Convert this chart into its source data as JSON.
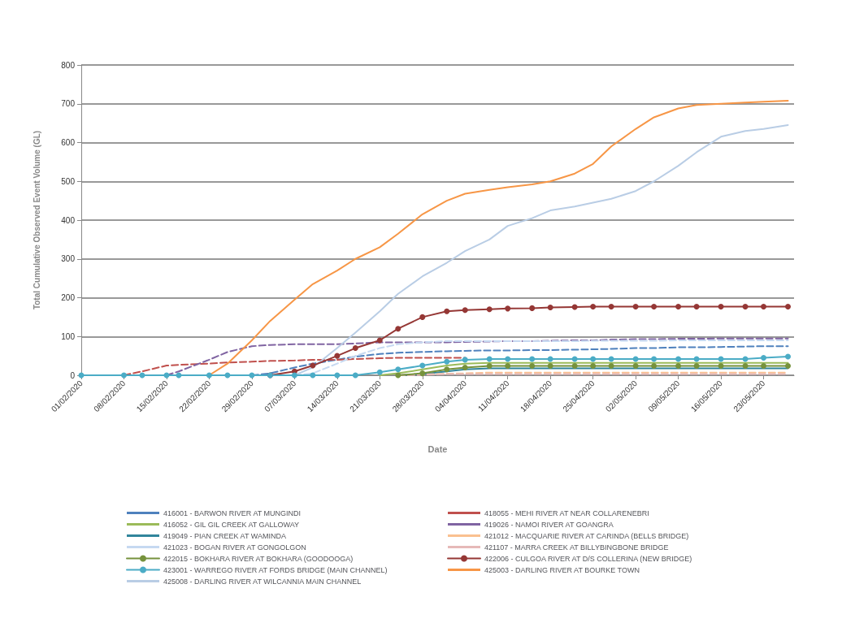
{
  "chart_data": {
    "type": "line",
    "xlabel": "Date",
    "ylabel": "Total Cumulative Observed Event Volume (GL)",
    "x": [
      "2020-02-01",
      "2020-02-08",
      "2020-02-11",
      "2020-02-15",
      "2020-02-17",
      "2020-02-22",
      "2020-02-25",
      "2020-02-29",
      "2020-03-03",
      "2020-03-07",
      "2020-03-10",
      "2020-03-14",
      "2020-03-17",
      "2020-03-21",
      "2020-03-24",
      "2020-03-28",
      "2020-04-01",
      "2020-04-04",
      "2020-04-08",
      "2020-04-11",
      "2020-04-15",
      "2020-04-18",
      "2020-04-22",
      "2020-04-25",
      "2020-04-28",
      "2020-05-02",
      "2020-05-05",
      "2020-05-09",
      "2020-05-12",
      "2020-05-16",
      "2020-05-20",
      "2020-05-23",
      "2020-05-27"
    ],
    "xlim": [
      "2020-02-01",
      "2020-05-28"
    ],
    "xticks": [
      {
        "value": "2020-02-01",
        "label": "01/02/2020"
      },
      {
        "value": "2020-02-08",
        "label": "08/02/2020"
      },
      {
        "value": "2020-02-15",
        "label": "15/02/2020"
      },
      {
        "value": "2020-02-22",
        "label": "22/02/2020"
      },
      {
        "value": "2020-02-29",
        "label": "29/02/2020"
      },
      {
        "value": "2020-03-07",
        "label": "07/03/2020"
      },
      {
        "value": "2020-03-14",
        "label": "14/03/2020"
      },
      {
        "value": "2020-03-21",
        "label": "21/03/2020"
      },
      {
        "value": "2020-03-28",
        "label": "28/03/2020"
      },
      {
        "value": "2020-04-04",
        "label": "04/04/2020"
      },
      {
        "value": "2020-04-11",
        "label": "11/04/2020"
      },
      {
        "value": "2020-04-18",
        "label": "18/04/2020"
      },
      {
        "value": "2020-04-25",
        "label": "25/04/2020"
      },
      {
        "value": "2020-05-02",
        "label": "02/05/2020"
      },
      {
        "value": "2020-05-09",
        "label": "09/05/2020"
      },
      {
        "value": "2020-05-16",
        "label": "16/05/2020"
      },
      {
        "value": "2020-05-23",
        "label": "23/05/2020"
      }
    ],
    "ylim": [
      0,
      800
    ],
    "yticks": [
      0,
      100,
      200,
      300,
      400,
      500,
      600,
      700,
      800
    ],
    "grid": "y",
    "legend": "bottom",
    "marker": "none",
    "series": [
      {
        "name": "416001 - BARWON RIVER AT MUNGINDI",
        "color": "#4f81bd",
        "line_style": "dashed",
        "values": [
          null,
          null,
          null,
          null,
          null,
          null,
          null,
          0,
          5,
          20,
          30,
          40,
          48,
          55,
          58,
          60,
          62,
          63,
          64,
          64,
          65,
          65,
          66,
          67,
          68,
          70,
          70,
          72,
          72,
          73,
          74,
          75,
          75
        ]
      },
      {
        "name": "418055 - MEHI RIVER AT NEAR COLLARENEBRI",
        "color": "#c0504d",
        "line_style": "dashed",
        "values": [
          null,
          0,
          10,
          25,
          27,
          30,
          33,
          35,
          37,
          38,
          40,
          40,
          42,
          44,
          45,
          45,
          45,
          45,
          null,
          null,
          null,
          null,
          null,
          null,
          null,
          null,
          null,
          null,
          null,
          null,
          null,
          null,
          null
        ]
      },
      {
        "name": "416052 - GIL GIL CREEK AT GALLOWAY",
        "color": "#9bbb59",
        "line_style": "solid",
        "values": [
          null,
          null,
          null,
          null,
          null,
          null,
          null,
          null,
          null,
          null,
          null,
          null,
          null,
          0,
          5,
          15,
          25,
          30,
          32,
          32,
          32,
          32,
          32,
          32,
          32,
          32,
          32,
          32,
          32,
          32,
          32,
          32,
          32
        ]
      },
      {
        "name": "419026 - NAMOI RIVER AT GOANGRA",
        "color": "#8064a2",
        "line_style": "dashed",
        "values": [
          null,
          null,
          null,
          0,
          10,
          40,
          60,
          75,
          78,
          80,
          80,
          80,
          82,
          85,
          85,
          85,
          85,
          86,
          87,
          88,
          88,
          89,
          90,
          90,
          92,
          93,
          93,
          94,
          94,
          95,
          95,
          95,
          95
        ]
      },
      {
        "name": "419049 - PIAN CREEK AT WAMINDA",
        "color": "#31859c",
        "line_style": "solid",
        "values": [
          null,
          null,
          null,
          null,
          null,
          null,
          null,
          null,
          null,
          null,
          null,
          null,
          null,
          null,
          0,
          3,
          10,
          15,
          18,
          18,
          18,
          18,
          18,
          18,
          18,
          18,
          18,
          18,
          18,
          18,
          18,
          18,
          18
        ]
      },
      {
        "name": "421012 - MACQUARIE RIVER AT CARINDA (BELLS BRIDGE)",
        "color": "#fac090",
        "line_style": "dashed",
        "values": [
          null,
          null,
          null,
          null,
          null,
          null,
          null,
          null,
          null,
          null,
          null,
          null,
          null,
          null,
          0,
          2,
          4,
          5,
          7,
          7,
          7,
          7,
          7,
          7,
          7,
          7,
          7,
          7,
          7,
          7,
          7,
          7,
          7
        ]
      },
      {
        "name": "421023 - BOGAN RIVER AT GONGOLGON",
        "color": "#c6d9f1",
        "line_style": "dashed",
        "values": [
          null,
          null,
          null,
          null,
          null,
          null,
          null,
          null,
          null,
          0,
          5,
          30,
          50,
          70,
          80,
          85,
          88,
          88,
          88,
          88,
          88,
          88,
          88,
          89,
          89,
          89,
          89,
          90,
          90,
          90,
          90,
          90,
          90
        ]
      },
      {
        "name": "421107 - MARRA CREEK AT BILLYBINGBONE BRIDGE",
        "color": "#e6b9b8",
        "line_style": "dashed",
        "values": [
          null,
          null,
          null,
          null,
          null,
          null,
          null,
          null,
          null,
          null,
          null,
          null,
          null,
          null,
          0,
          1,
          3,
          3,
          3,
          3,
          3,
          3,
          3,
          3,
          3,
          3,
          3,
          3,
          3,
          3,
          3,
          3,
          3
        ]
      },
      {
        "name": "422015 - BOKHARA RIVER AT BOKHARA (GOODOOGA)",
        "color": "#76923c",
        "line_style": "solid",
        "marker": "circle",
        "values": [
          null,
          null,
          null,
          null,
          null,
          null,
          null,
          null,
          null,
          null,
          null,
          null,
          null,
          null,
          0,
          5,
          15,
          20,
          24,
          24,
          24,
          24,
          24,
          24,
          24,
          24,
          24,
          24,
          24,
          24,
          24,
          24,
          24
        ]
      },
      {
        "name": "422006 - CULGOA RIVER AT D/S COLLERINA (NEW BRIDGE)",
        "color": "#953735",
        "line_style": "solid",
        "marker": "circle",
        "values": [
          null,
          null,
          null,
          null,
          null,
          null,
          null,
          null,
          0,
          10,
          25,
          50,
          70,
          90,
          120,
          150,
          165,
          168,
          170,
          172,
          173,
          175,
          176,
          177,
          177,
          177,
          177,
          177,
          177,
          177,
          177,
          177,
          177
        ]
      },
      {
        "name": "423001 - WARREGO RIVER AT FORDS BRIDGE (MAIN CHANNEL)",
        "color": "#4bacc6",
        "line_style": "solid",
        "marker": "circle",
        "values": [
          0,
          0,
          0,
          0,
          0,
          0,
          0,
          0,
          0,
          0,
          0,
          0,
          0,
          8,
          15,
          25,
          35,
          40,
          42,
          42,
          42,
          42,
          42,
          42,
          42,
          42,
          42,
          42,
          42,
          42,
          42,
          45,
          48
        ]
      },
      {
        "name": "425003 - DARLING RIVER AT BOURKE TOWN",
        "color": "#f79646",
        "line_style": "solid",
        "values": [
          null,
          null,
          null,
          null,
          null,
          0,
          30,
          90,
          140,
          195,
          235,
          270,
          300,
          330,
          365,
          415,
          450,
          468,
          478,
          485,
          492,
          500,
          520,
          545,
          590,
          635,
          665,
          688,
          697,
          700,
          703,
          705,
          708
        ]
      },
      {
        "name": "425008 - DARLING RIVER AT WILCANNIA MAIN CHANNEL",
        "color": "#b9cde5",
        "line_style": "solid",
        "values": [
          null,
          null,
          null,
          null,
          null,
          null,
          null,
          null,
          null,
          0,
          20,
          70,
          110,
          165,
          210,
          255,
          290,
          320,
          350,
          385,
          405,
          425,
          435,
          445,
          455,
          475,
          500,
          540,
          575,
          615,
          630,
          635,
          645
        ]
      }
    ]
  }
}
